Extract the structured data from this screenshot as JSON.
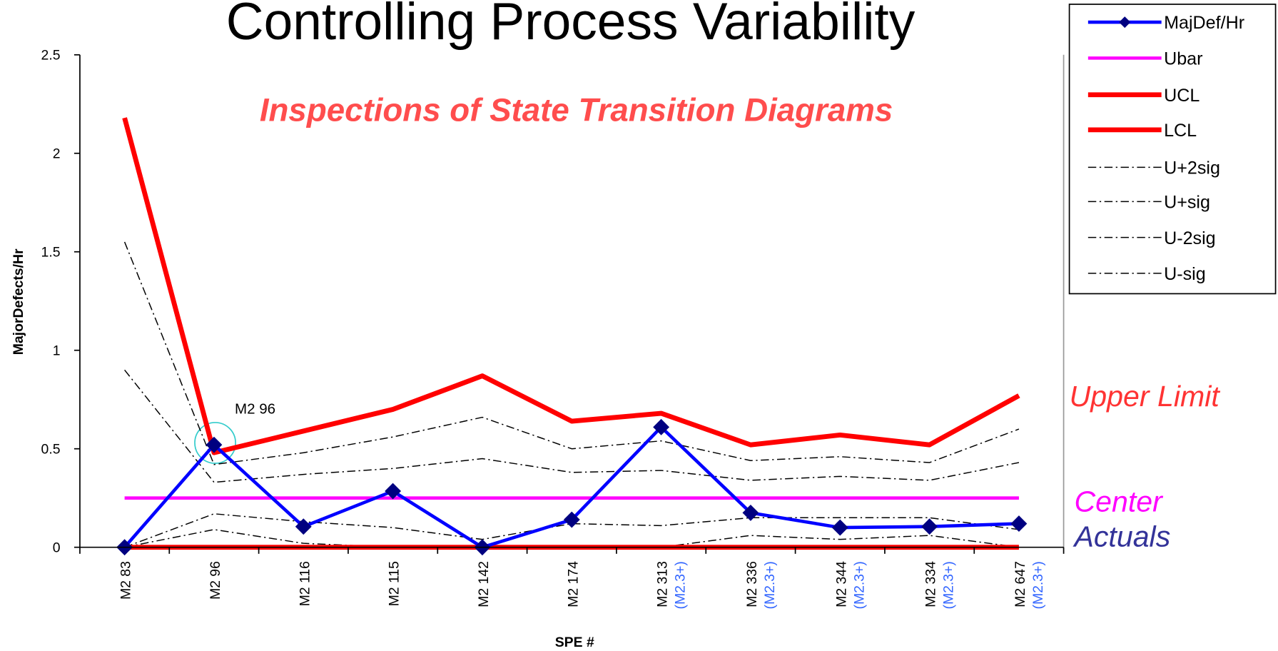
{
  "chart_data": {
    "type": "line",
    "title": "Controlling Process Variability",
    "subtitle": "Inspections of State Transition Diagrams",
    "x_label": "SPE #",
    "y_label": "MajorDefects/Hr",
    "categories": [
      "M2 83",
      "M2 96",
      "M2 116",
      "M2 115",
      "M2 142",
      "M2 174",
      "M2 313",
      "M2 336",
      "M2 344",
      "M2 334",
      "M2 647"
    ],
    "category_sublabels": [
      null,
      null,
      null,
      null,
      null,
      null,
      "(M2.3+)",
      "(M2.3+)",
      "(M2.3+)",
      "(M2.3+)",
      "(M2.3+)"
    ],
    "ylim": [
      0,
      2.5
    ],
    "yticks": [
      0,
      0.5,
      1,
      1.5,
      2,
      2.5
    ],
    "legend": "top-right",
    "series": [
      {
        "name": "MajDef/Hr",
        "color": "#0000ff",
        "width": 4,
        "dash": "solid",
        "marker": "diamond",
        "marker_color": "#000080",
        "values": [
          0,
          0.52,
          0.105,
          0.285,
          0,
          0.14,
          0.61,
          0.175,
          0.1,
          0.105,
          0.12
        ]
      },
      {
        "name": "Ubar",
        "color": "#ff00ff",
        "width": 4,
        "dash": "solid",
        "values": [
          0.25,
          0.25,
          0.25,
          0.25,
          0.25,
          0.25,
          0.25,
          0.25,
          0.25,
          0.25,
          0.25
        ]
      },
      {
        "name": "UCL",
        "color": "#ff0000",
        "width": 6,
        "dash": "solid",
        "values": [
          2.18,
          0.48,
          0.59,
          0.7,
          0.87,
          0.64,
          0.68,
          0.52,
          0.57,
          0.52,
          0.77
        ]
      },
      {
        "name": "LCL",
        "color": "#ff0000",
        "width": 6,
        "dash": "solid",
        "values": [
          0,
          0,
          0,
          0,
          0,
          0,
          0,
          0,
          0,
          0,
          0
        ]
      },
      {
        "name": "U+2sig",
        "color": "#000000",
        "width": 1.3,
        "dash": "dashdot",
        "values": [
          1.55,
          0.42,
          0.48,
          0.56,
          0.66,
          0.5,
          0.54,
          0.44,
          0.46,
          0.43,
          0.6
        ]
      },
      {
        "name": "U+sig",
        "color": "#000000",
        "width": 1.3,
        "dash": "dashdot",
        "values": [
          0.9,
          0.33,
          0.37,
          0.4,
          0.45,
          0.38,
          0.39,
          0.34,
          0.36,
          0.34,
          0.43
        ]
      },
      {
        "name": "U-2sig",
        "color": "#000000",
        "width": 1.3,
        "dash": "dashdot",
        "values": [
          0,
          0.09,
          0.02,
          0,
          0,
          0,
          0,
          0.06,
          0.04,
          0.06,
          0
        ]
      },
      {
        "name": "U-sig",
        "color": "#000000",
        "width": 1.3,
        "dash": "dashdot",
        "values": [
          0,
          0.17,
          0.13,
          0.1,
          0.04,
          0.12,
          0.11,
          0.15,
          0.15,
          0.15,
          0.09
        ]
      }
    ],
    "annotations": [
      {
        "text": "M2 96",
        "color": "#000000"
      },
      {
        "text": "Upper Limit",
        "color": "#ff3333"
      },
      {
        "text": "Center",
        "color": "#ff00ff"
      },
      {
        "text": "Actuals",
        "color": "#333399"
      }
    ]
  }
}
